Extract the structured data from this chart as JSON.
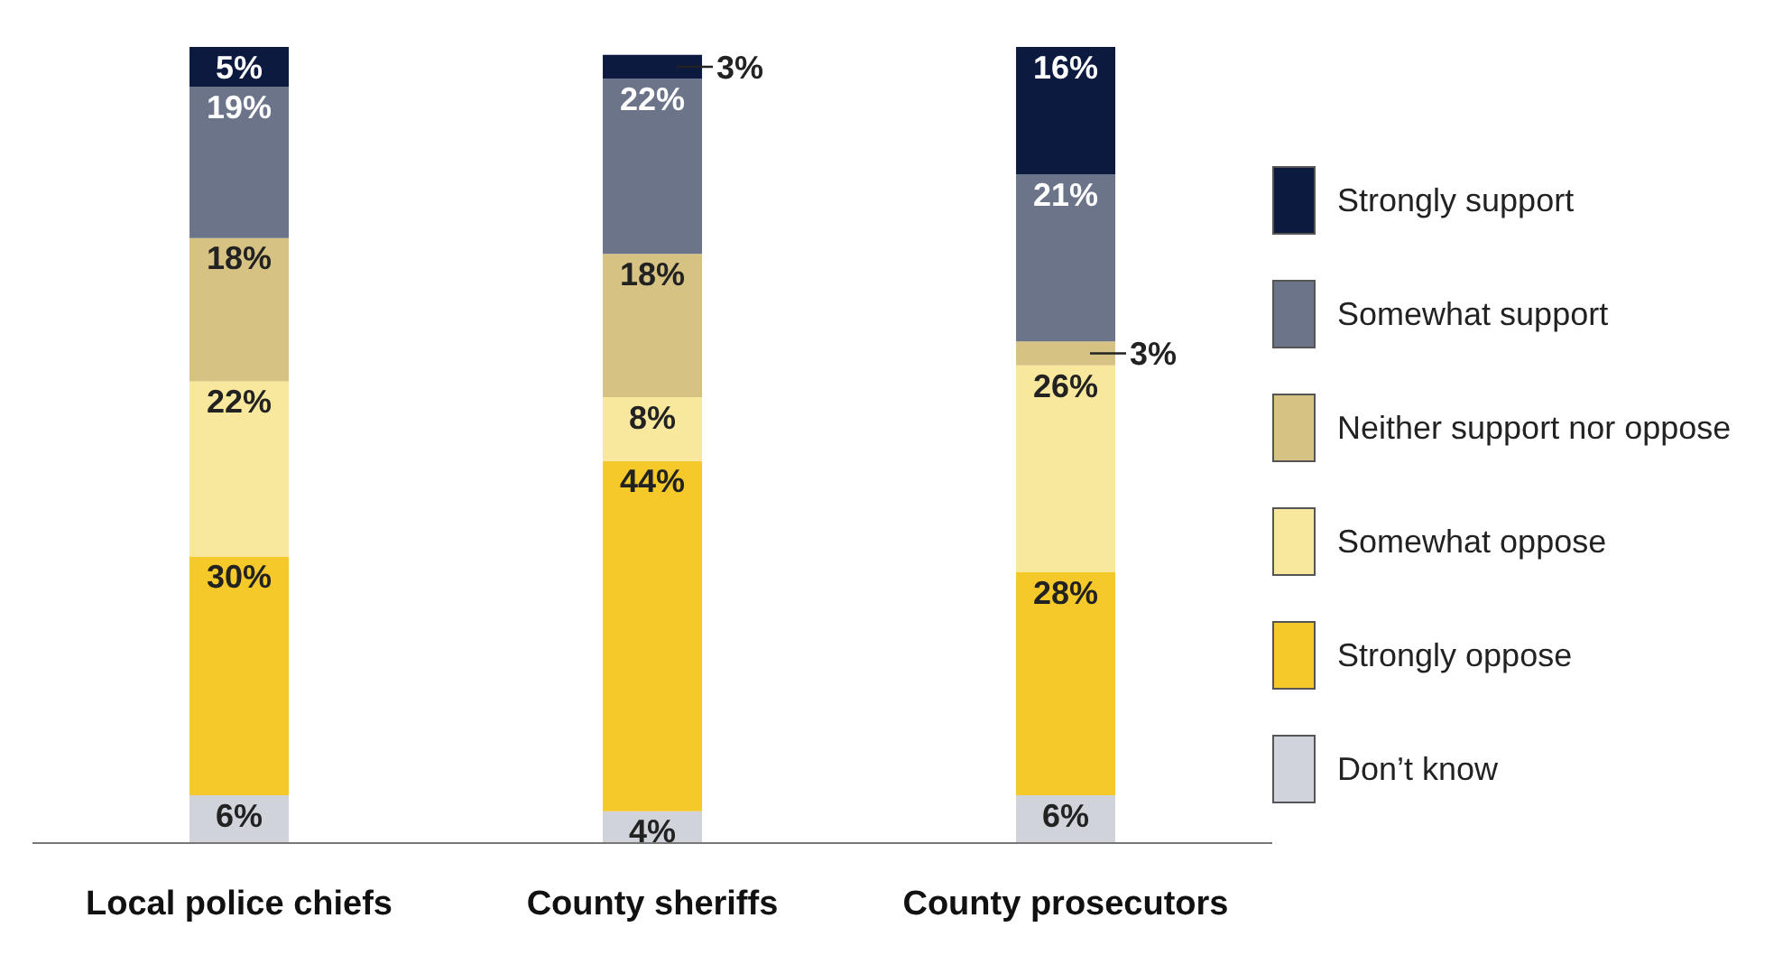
{
  "chart_data": {
    "type": "bar",
    "stacked": true,
    "legend": "right",
    "categories": [
      "Local police chiefs",
      "County sheriffs",
      "County prosecutors"
    ],
    "series": [
      {
        "name": "Don’t know",
        "color": "#d0d3da",
        "values": [
          6,
          4,
          6
        ],
        "value_labels": [
          "6%",
          "4%",
          "6%"
        ]
      },
      {
        "name": "Strongly oppose",
        "color": "#f5c92a",
        "values": [
          30,
          44,
          28
        ],
        "value_labels": [
          "30%",
          "44%",
          "28%"
        ]
      },
      {
        "name": "Somewhat oppose",
        "color": "#f8e89e",
        "values": [
          22,
          8,
          26
        ],
        "value_labels": [
          "22%",
          "8%",
          "26%"
        ]
      },
      {
        "name": "Neither support nor oppose",
        "color": "#d6c283",
        "values": [
          18,
          18,
          3
        ],
        "value_labels": [
          "18%",
          "18%",
          "3%"
        ]
      },
      {
        "name": "Somewhat support",
        "color": "#6b7489",
        "values": [
          19,
          22,
          21
        ],
        "value_labels": [
          "19%",
          "22%",
          "21%"
        ]
      },
      {
        "name": "Strongly support",
        "color": "#0d1a40",
        "values": [
          5,
          3,
          16
        ],
        "value_labels": [
          "5%",
          "3%",
          "16%"
        ]
      }
    ]
  }
}
